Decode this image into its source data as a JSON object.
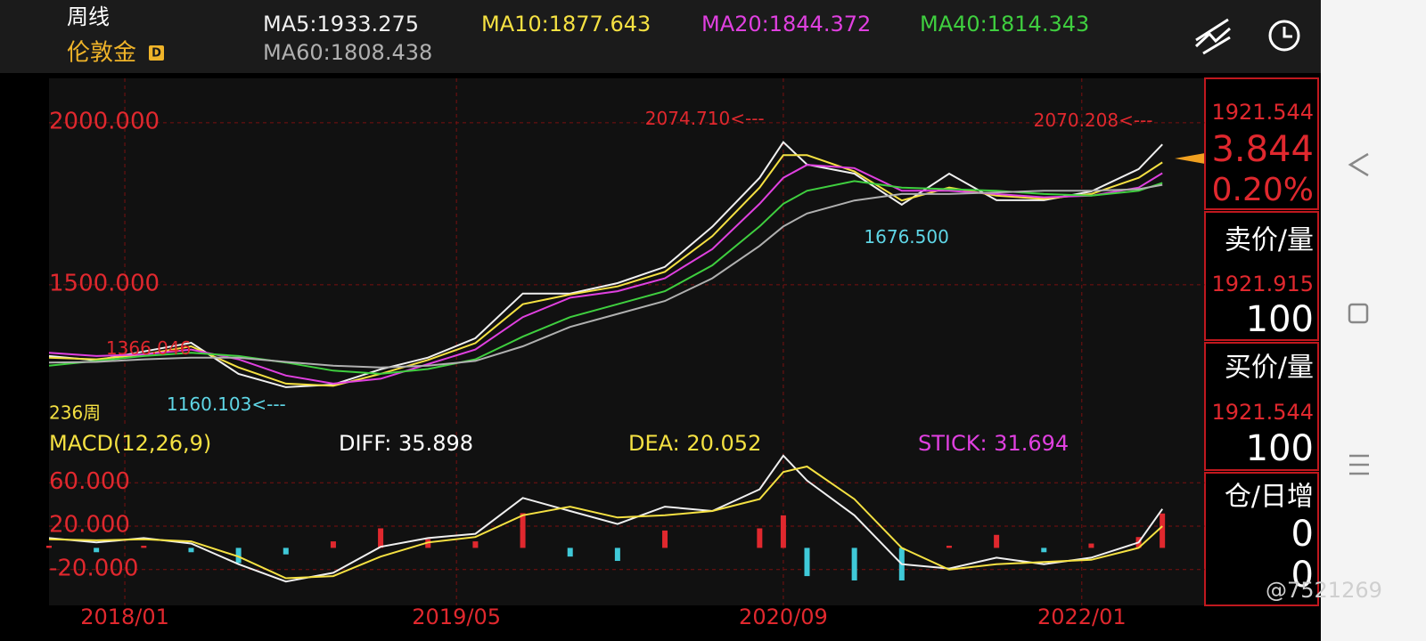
{
  "header": {
    "period": "周线",
    "symbol": "伦敦金",
    "badge": "D",
    "bar_count": "236周"
  },
  "chart_data": [
    {
      "type": "line",
      "x": [
        0,
        10,
        20,
        30,
        40,
        50,
        60,
        70,
        80,
        90,
        100,
        110,
        120,
        130,
        140,
        150,
        155,
        160,
        170,
        180,
        190,
        200,
        210,
        220,
        230,
        235
      ],
      "xlim": [
        0,
        244
      ],
      "ylim": [
        1060,
        2137
      ],
      "yticks": [
        {
          "value": 2000,
          "label": "2000.000"
        },
        {
          "value": 1500,
          "label": "1500.000"
        }
      ],
      "grid": true,
      "series": [
        {
          "name": "MA5:1933.275",
          "color": "#f0f0f0",
          "values": [
            1280,
            1267,
            1294,
            1321,
            1225,
            1184,
            1192,
            1239,
            1275,
            1335,
            1473,
            1473,
            1505,
            1555,
            1679,
            1830,
            1940,
            1871,
            1843,
            1747,
            1843,
            1761,
            1761,
            1788,
            1857,
            1933.275
          ]
        },
        {
          "name": "MA10:1877.643",
          "color": "#f5e142",
          "values": [
            1275,
            1270,
            1285,
            1310,
            1245,
            1195,
            1188,
            1225,
            1268,
            1320,
            1440,
            1470,
            1495,
            1540,
            1650,
            1800,
            1900,
            1900,
            1850,
            1760,
            1800,
            1775,
            1765,
            1780,
            1830,
            1877.643
          ]
        },
        {
          "name": "MA20:1844.372",
          "color": "#e040e0",
          "values": [
            1290,
            1280,
            1285,
            1300,
            1270,
            1220,
            1195,
            1210,
            1255,
            1300,
            1400,
            1460,
            1480,
            1520,
            1610,
            1750,
            1830,
            1870,
            1860,
            1790,
            1790,
            1780,
            1770,
            1775,
            1800,
            1844.372
          ]
        },
        {
          "name": "MA40:1814.343",
          "color": "#3fcf3f",
          "values": [
            1250,
            1265,
            1280,
            1290,
            1280,
            1260,
            1235,
            1225,
            1240,
            1270,
            1340,
            1400,
            1440,
            1480,
            1560,
            1680,
            1750,
            1790,
            1820,
            1800,
            1795,
            1790,
            1780,
            1775,
            1790,
            1814.343
          ]
        },
        {
          "name": "MA60:1808.438",
          "color": "#b0b0b0",
          "values": [
            1260,
            1262,
            1270,
            1275,
            1275,
            1262,
            1250,
            1245,
            1250,
            1265,
            1310,
            1370,
            1410,
            1450,
            1520,
            1620,
            1680,
            1720,
            1760,
            1780,
            1780,
            1785,
            1790,
            1790,
            1795,
            1808.438
          ]
        }
      ],
      "annotations": [
        {
          "label": "2074.710<---",
          "value": 2074.71,
          "x": 151,
          "kind": "high"
        },
        {
          "label": "2070.208<---",
          "value": 2070.208,
          "x": 233,
          "kind": "high"
        },
        {
          "label": "1676.500",
          "value": 1676.5,
          "x": 181,
          "kind": "low"
        },
        {
          "label": "1366.046",
          "value": 1366.046,
          "x": 21,
          "kind": "high"
        },
        {
          "label": "1160.103<---",
          "value": 1160.103,
          "x": 50,
          "kind": "low"
        }
      ]
    },
    {
      "type": "macd",
      "title": "MACD(12,26,9)",
      "x": [
        0,
        10,
        20,
        30,
        40,
        50,
        60,
        70,
        80,
        90,
        100,
        110,
        120,
        130,
        140,
        150,
        155,
        160,
        170,
        180,
        190,
        200,
        210,
        220,
        230,
        235
      ],
      "xlim": [
        0,
        244
      ],
      "ylim": [
        -53,
        107
      ],
      "yticks": [
        {
          "value": 60,
          "label": "60.000"
        },
        {
          "value": 20,
          "label": "20.000"
        },
        {
          "value": -20,
          "label": "-20.000"
        }
      ],
      "xticks": [
        {
          "value": 16,
          "label": "2018/01"
        },
        {
          "value": 86,
          "label": "2019/05"
        },
        {
          "value": 155,
          "label": "2020/09"
        },
        {
          "value": 218,
          "label": "2022/01"
        }
      ],
      "grid": true,
      "series": [
        {
          "name": "DIFF: 35.898",
          "color": "#f0f0f0",
          "values": [
            9,
            5,
            9,
            4,
            -15,
            -31,
            -23,
            1,
            9,
            13,
            46,
            34,
            22,
            38,
            34,
            54,
            85,
            62,
            30,
            -15,
            -19,
            -9,
            -15,
            -9,
            5,
            35.898
          ]
        },
        {
          "name": "DEA: 20.052",
          "color": "#f5e142",
          "values": [
            8,
            7,
            8,
            6,
            -8,
            -28,
            -26,
            -8,
            5,
            10,
            30,
            38,
            28,
            30,
            34,
            45,
            70,
            75,
            45,
            0,
            -20,
            -15,
            -13,
            -11,
            0,
            20.052
          ]
        },
        {
          "name": "STICK: 31.694",
          "color": "#e040e0",
          "bar_color": "#e0282e",
          "negative_color": "#3fc9d8",
          "values": [
            2,
            -4,
            2,
            -4,
            -14,
            -6,
            6,
            18,
            8,
            6,
            32,
            -8,
            -12,
            16,
            0,
            18,
            30,
            -26,
            -30,
            -30,
            2,
            12,
            -4,
            4,
            10,
            31.694
          ]
        }
      ]
    }
  ],
  "quote_panel": {
    "last": "1921.544",
    "change": "3.844",
    "change_pct": "0.20%",
    "ask_label": "卖价/量",
    "ask_price": "1921.915",
    "ask_volume": "100",
    "bid_label": "买价/量",
    "bid_price": "1921.544",
    "bid_volume": "100",
    "oi_label": "仓/日增",
    "oi": "0",
    "oi_change": "0"
  },
  "watermark": "@7521269"
}
